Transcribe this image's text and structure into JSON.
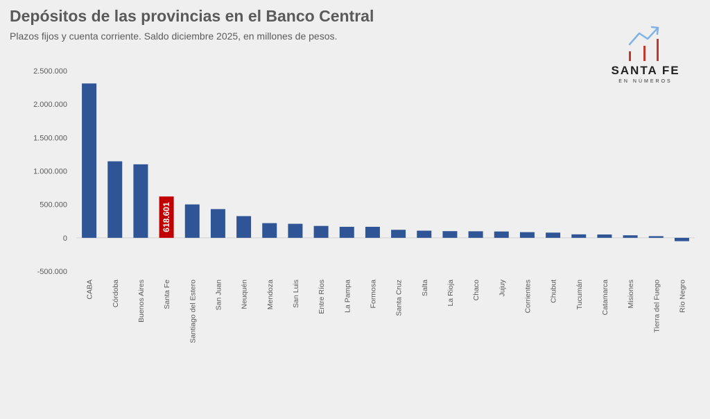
{
  "header": {
    "title": "Depósitos de las provincias en el Banco Central",
    "subtitle": "Plazos fijos y cuenta corriente. Saldo diciembre 2025, en millones de pesos."
  },
  "logo": {
    "main": "SANTA FE",
    "sub": "EN NÚMEROS",
    "icon": "growth-arrow-icon",
    "colors": {
      "arrow": "#7fb2e5",
      "bars": "#c0392b"
    }
  },
  "colors": {
    "bar": "#2f5597",
    "highlight": "#c00000",
    "background": "#efefef",
    "axis_text": "#5a5a5a"
  },
  "chart_data": {
    "type": "bar",
    "title": "Depósitos de las provincias en el Banco Central",
    "subtitle": "Plazos fijos y cuenta corriente. Saldo diciembre 2025, en millones de pesos.",
    "categories": [
      "CABA",
      "Córdoba",
      "Buenos Aires",
      "Santa Fe",
      "Santiago del Estero",
      "San Juan",
      "Neuquén",
      "Mendoza",
      "San Luis",
      "Entre Ríos",
      "La Pampa",
      "Formosa",
      "Santa Cruz",
      "Salta",
      "La Rioja",
      "Chaco",
      "Jujuy",
      "Corrientes",
      "Chubut",
      "Tucumán",
      "Catamarca",
      "Misiones",
      "Tierra del Fuego",
      "Río Negro"
    ],
    "values": [
      2310000,
      1145000,
      1100000,
      618601,
      500000,
      430000,
      325000,
      220000,
      210000,
      178000,
      165000,
      165000,
      120000,
      107000,
      100000,
      98000,
      95000,
      85000,
      78000,
      52000,
      50000,
      38000,
      25000,
      -50000
    ],
    "highlight": "Santa Fe",
    "data_labels": [
      {
        "category": "Santa Fe",
        "text": "618.601"
      }
    ],
    "yticks": [
      "2.500.000",
      "2.000.000",
      "1.500.000",
      "1.000.000",
      "500.000",
      "0",
      "-500.000"
    ],
    "ytick_values": [
      2500000,
      2000000,
      1500000,
      1000000,
      500000,
      0,
      -500000
    ],
    "ylim": [
      -500000,
      2500000
    ],
    "xlabel": "",
    "ylabel": "",
    "grid": false,
    "legend": "none"
  }
}
